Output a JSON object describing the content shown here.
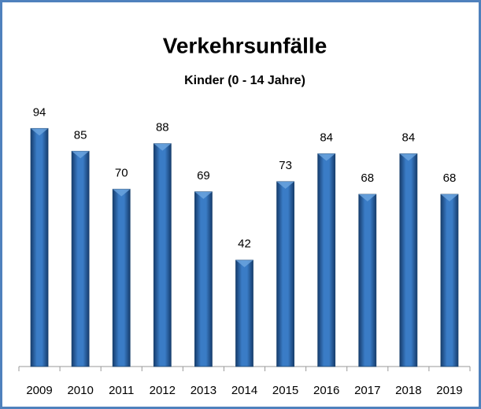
{
  "chart_data": {
    "type": "bar",
    "title": "Verkehrsunfälle",
    "subtitle": "Kinder (0 - 14 Jahre)",
    "categories": [
      "2009",
      "2010",
      "2011",
      "2012",
      "2013",
      "2014",
      "2015",
      "2016",
      "2017",
      "2018",
      "2019"
    ],
    "values": [
      94,
      85,
      70,
      88,
      69,
      42,
      73,
      84,
      68,
      84,
      68
    ],
    "color": "#2f6db5",
    "ylim": [
      0,
      100
    ]
  }
}
